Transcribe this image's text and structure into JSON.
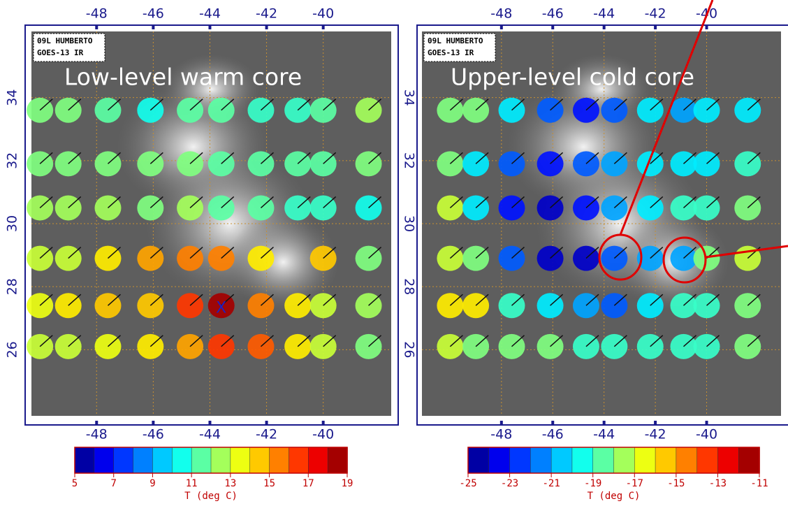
{
  "panels": [
    {
      "label": "09L HUMBERTO",
      "satellite": "GOES-13 IR",
      "title": "Low-level warm core",
      "xlim": [
        -50.3,
        -37.6
      ],
      "ylim": [
        23.9,
        36.1
      ],
      "xticks": [
        -48,
        -46,
        -44,
        -42,
        -40
      ],
      "yticks": [
        26,
        28,
        30,
        32,
        34
      ],
      "lon": [
        -50,
        -49,
        -47.6,
        -46.1,
        -44.7,
        -43.6,
        -42.2,
        -40.9,
        -40,
        -38.4
      ],
      "lat": [
        33.6,
        31.9,
        30.5,
        28.9,
        27.4,
        26.1
      ],
      "T": [
        [
          12,
          12,
          11.5,
          10.5,
          11.5,
          11.5,
          11,
          11,
          11.5,
          12.5
        ],
        [
          12,
          12,
          12,
          12,
          12,
          11.5,
          11.5,
          11.5,
          11.5,
          12
        ],
        [
          12.5,
          12.5,
          12.5,
          12,
          12.5,
          11.5,
          11.5,
          11,
          11,
          10.5
        ],
        [
          13,
          13,
          14,
          15,
          15.5,
          15.5,
          14,
          null,
          14.5,
          12
        ],
        [
          13.5,
          14,
          14.5,
          14.5,
          16.5,
          18.5,
          15.5,
          14,
          13,
          12.5
        ],
        [
          13,
          13,
          13.5,
          14,
          15,
          16.5,
          16,
          14,
          13,
          12
        ]
      ],
      "clim": [
        5,
        19
      ],
      "cbar_ticks": [
        5,
        7,
        9,
        11,
        13,
        15,
        17,
        19
      ],
      "cbar_label": "T (deg C)",
      "center_mark": {
        "lon": -43.6,
        "lat": 27.3,
        "label": "X"
      }
    },
    {
      "label": "09L HUMBERTO",
      "satellite": "GOES-13 IR",
      "title": "Upper-level cold core",
      "xlim": [
        -51.1,
        -37.1
      ],
      "ylim": [
        23.9,
        36.1
      ],
      "xticks": [
        -48,
        -46,
        -44,
        -42,
        -40
      ],
      "yticks": [
        26,
        28,
        30,
        32,
        34
      ],
      "lon": [
        -50,
        -49,
        -47.6,
        -46.1,
        -44.7,
        -43.6,
        -42.2,
        -40.9,
        -40,
        -38.4
      ],
      "lat": [
        33.6,
        31.9,
        30.5,
        28.9,
        27.4,
        26.1
      ],
      "T": [
        [
          -18,
          -18,
          -20,
          -22,
          -23,
          -22,
          -20,
          -21,
          -20,
          -20
        ],
        [
          -18,
          -20,
          -22,
          -23,
          -22,
          -21,
          -20,
          -20,
          -20,
          -19
        ],
        [
          -17,
          -20,
          -23,
          -24,
          -23,
          -21,
          -20,
          -19,
          -19,
          -18
        ],
        [
          -17,
          -18,
          -22,
          -24,
          -24,
          -22,
          -21,
          -21,
          -18,
          -17
        ],
        [
          -16,
          -16,
          -19,
          -20,
          -21,
          -22,
          -20,
          -19,
          -19,
          -18
        ],
        [
          -17,
          -18,
          -18,
          -18,
          -19,
          -19,
          -19,
          -19,
          -19,
          -18
        ]
      ],
      "clim": [
        -25,
        -11
      ],
      "cbar_ticks": [
        -25,
        -23,
        -21,
        -19,
        -17,
        -15,
        -13,
        -11
      ],
      "cbar_label": "T (deg C)"
    }
  ],
  "colormap": [
    "#000080",
    "#0000ff",
    "#0080ff",
    "#00ffff",
    "#80ff80",
    "#ffff00",
    "#ff8000",
    "#ff0000",
    "#800000"
  ],
  "cbar_bands": 14
}
